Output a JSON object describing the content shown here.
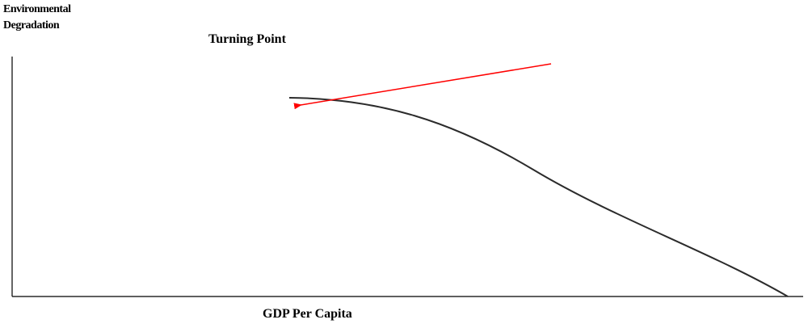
{
  "y_axis_label": {
    "line1": "Environmental",
    "line2": "Degradation"
  },
  "x_axis_label": "GDP Per Capita",
  "annotation": "Turning Point",
  "colors": {
    "curve": "#2b2b2b",
    "arrow": "#ff0000",
    "axes": "#000000"
  }
}
